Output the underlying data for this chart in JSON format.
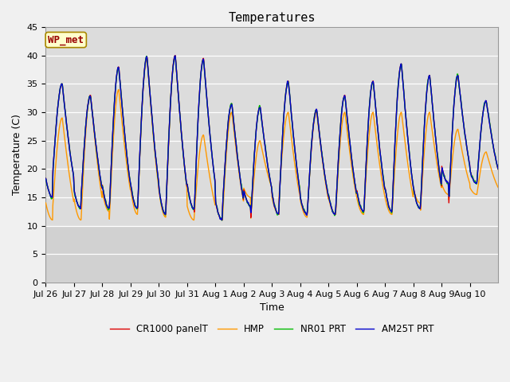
{
  "title": "Temperatures",
  "xlabel": "Time",
  "ylabel": "Temperature (C)",
  "ylim": [
    0,
    45
  ],
  "yticks": [
    0,
    5,
    10,
    15,
    20,
    25,
    30,
    35,
    40,
    45
  ],
  "fig_bg_color": "#f0f0f0",
  "plot_bg_color": "#dcdcdc",
  "series_colors": {
    "CR1000 panelT": "#dd0000",
    "HMP": "#ff9900",
    "NR01 PRT": "#00bb00",
    "AM25T PRT": "#0000cc"
  },
  "legend_label": "WP_met",
  "xtick_labels": [
    "Jul 26",
    "Jul 27",
    "Jul 28",
    "Jul 29",
    "Jul 30",
    "Jul 31",
    "Aug 1",
    "Aug 2",
    "Aug 3",
    "Aug 4",
    "Aug 5",
    "Aug 6",
    "Aug 7",
    "Aug 8",
    "Aug 9",
    "Aug 10"
  ],
  "title_fontsize": 11,
  "axis_fontsize": 9,
  "tick_fontsize": 8,
  "line_width": 1.0,
  "day_peaks_cr": [
    35.0,
    33.0,
    38.0,
    39.8,
    40.0,
    39.5,
    31.5,
    31.0,
    35.5,
    30.5,
    33.0,
    35.5,
    38.5,
    36.5,
    36.5,
    32.0
  ],
  "day_mins_cr": [
    19.5,
    15.0,
    13.0,
    13.0,
    13.0,
    12.0,
    13.0,
    11.0,
    13.5,
    12.0,
    12.0,
    12.0,
    12.5,
    12.5,
    13.0,
    17.5
  ],
  "day_peaks_hmp": [
    29.0,
    33.0,
    34.0,
    39.5,
    40.0,
    26.0,
    30.0,
    25.0,
    30.0,
    30.0,
    30.0,
    30.0,
    30.0,
    30.0,
    27.0,
    23.0
  ],
  "day_mins_hmp": [
    13.5,
    11.0,
    11.0,
    12.5,
    12.0,
    11.5,
    11.0,
    11.0,
    15.0,
    12.0,
    11.5,
    12.0,
    12.0,
    12.0,
    14.0,
    15.5
  ]
}
